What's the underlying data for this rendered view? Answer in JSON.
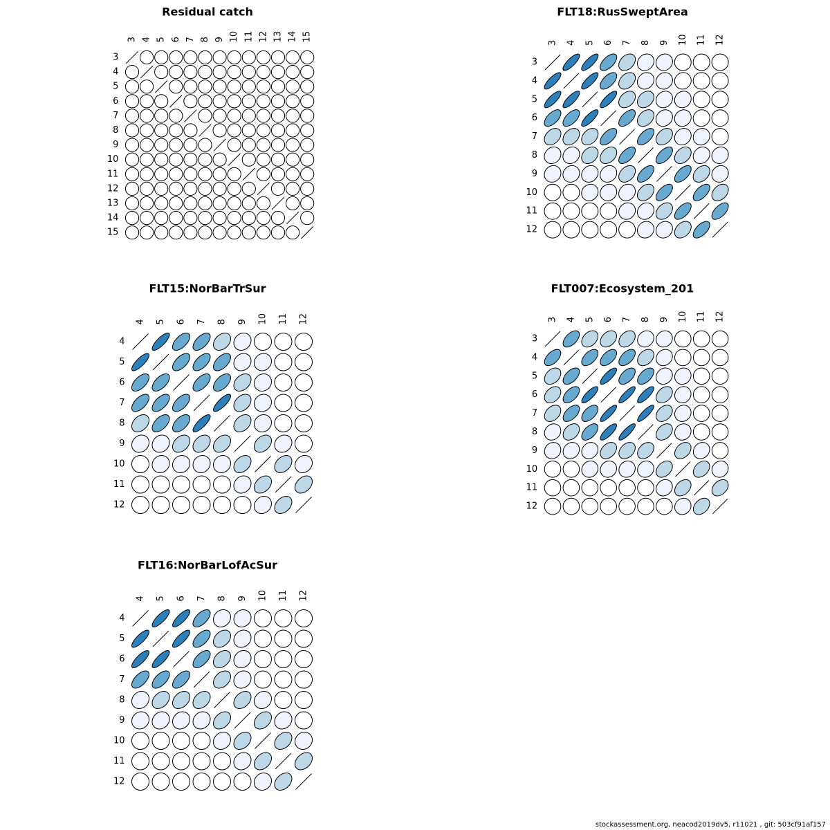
{
  "footer": "stockassessment.org, neacod2019dv5, r11021 , git: 503cf91af157",
  "palette": {
    "strong": "#2c7fb8",
    "medium": "#67a9cf",
    "light": "#bdd7e7",
    "faint": "#eff3ff",
    "none": "#ffffff"
  },
  "chart_data": [
    {
      "type": "correlation-ellipse",
      "title": "Residual catch",
      "labels": [
        "3",
        "4",
        "5",
        "6",
        "7",
        "8",
        "9",
        "10",
        "11",
        "12",
        "13",
        "14",
        "15"
      ],
      "matrix": [
        [
          1,
          0,
          0,
          0,
          0,
          0,
          0,
          0,
          0,
          0,
          0,
          0,
          0
        ],
        [
          0,
          1,
          0,
          0,
          0,
          0,
          0,
          0,
          0,
          0,
          0,
          0,
          0
        ],
        [
          0,
          0,
          1,
          0,
          0,
          0,
          0,
          0,
          0,
          0,
          0,
          0,
          0
        ],
        [
          0,
          0,
          0,
          1,
          0,
          0,
          0,
          0,
          0,
          0,
          0,
          0,
          0
        ],
        [
          0,
          0,
          0,
          0,
          1,
          0,
          0,
          0,
          0,
          0,
          0,
          0,
          0
        ],
        [
          0,
          0,
          0,
          0,
          0,
          1,
          0,
          0,
          0,
          0,
          0,
          0,
          0
        ],
        [
          0,
          0,
          0,
          0,
          0,
          0,
          1,
          0,
          0,
          0,
          0,
          0,
          0
        ],
        [
          0,
          0,
          0,
          0,
          0,
          0,
          0,
          1,
          0,
          0,
          0,
          0,
          0
        ],
        [
          0,
          0,
          0,
          0,
          0,
          0,
          0,
          0,
          1,
          0,
          0,
          0,
          0
        ],
        [
          0,
          0,
          0,
          0,
          0,
          0,
          0,
          0,
          0,
          1,
          0,
          0,
          0
        ],
        [
          0,
          0,
          0,
          0,
          0,
          0,
          0,
          0,
          0,
          0,
          1,
          0,
          0
        ],
        [
          0,
          0,
          0,
          0,
          0,
          0,
          0,
          0,
          0,
          0,
          0,
          1,
          0
        ],
        [
          0,
          0,
          0,
          0,
          0,
          0,
          0,
          0,
          0,
          0,
          0,
          0,
          1
        ]
      ]
    },
    {
      "type": "correlation-ellipse",
      "title": "FLT18:RusSweptArea",
      "labels": [
        "3",
        "4",
        "5",
        "6",
        "7",
        "8",
        "9",
        "10",
        "11",
        "12"
      ],
      "matrix": [
        [
          1,
          0.8,
          0.8,
          0.6,
          0.35,
          0.15,
          0.1,
          0,
          0,
          0
        ],
        [
          0.8,
          1,
          0.8,
          0.6,
          0.35,
          0.15,
          0.1,
          0.05,
          0,
          0
        ],
        [
          0.8,
          0.8,
          1,
          0.8,
          0.35,
          0.3,
          0.15,
          0.1,
          0,
          0
        ],
        [
          0.6,
          0.6,
          0.8,
          1,
          0.6,
          0.35,
          0.15,
          0.1,
          0.05,
          0
        ],
        [
          0.35,
          0.35,
          0.35,
          0.6,
          1,
          0.6,
          0.35,
          0.15,
          0.1,
          0
        ],
        [
          0.15,
          0.15,
          0.3,
          0.35,
          0.6,
          1,
          0.6,
          0.35,
          0.15,
          0.1
        ],
        [
          0.1,
          0.1,
          0.15,
          0.15,
          0.35,
          0.6,
          1,
          0.6,
          0.35,
          0.1
        ],
        [
          0,
          0,
          0.1,
          0.1,
          0.15,
          0.35,
          0.6,
          1,
          0.6,
          0.35
        ],
        [
          0,
          0,
          0,
          0,
          0.1,
          0.15,
          0.35,
          0.6,
          1,
          0.6
        ],
        [
          0,
          0,
          0,
          0,
          0,
          0.1,
          0.15,
          0.35,
          0.6,
          1
        ]
      ]
    },
    {
      "type": "correlation-ellipse",
      "title": "FLT15:NorBarTrSur",
      "labels": [
        "4",
        "5",
        "6",
        "7",
        "8",
        "9",
        "10",
        "11",
        "12"
      ],
      "matrix": [
        [
          1,
          0.8,
          0.6,
          0.6,
          0.35,
          0.15,
          0,
          0,
          0
        ],
        [
          0.8,
          1,
          0.6,
          0.6,
          0.55,
          0.15,
          0.1,
          0,
          0
        ],
        [
          0.6,
          0.6,
          1,
          0.6,
          0.55,
          0.35,
          0.1,
          0,
          0
        ],
        [
          0.6,
          0.6,
          0.6,
          1,
          0.8,
          0.35,
          0.1,
          0,
          0
        ],
        [
          0.35,
          0.55,
          0.55,
          0.8,
          1,
          0.35,
          0.1,
          0,
          0
        ],
        [
          0.15,
          0.15,
          0.35,
          0.35,
          0.35,
          1,
          0.35,
          0.15,
          0
        ],
        [
          0,
          0.1,
          0.1,
          0.1,
          0.1,
          0.35,
          1,
          0.35,
          0.15
        ],
        [
          0,
          0,
          0,
          0,
          0,
          0.15,
          0.35,
          1,
          0.35
        ],
        [
          0,
          0,
          0,
          0,
          0,
          0,
          0.15,
          0.35,
          1
        ]
      ]
    },
    {
      "type": "correlation-ellipse",
      "title": "FLT007:Ecosystem_201",
      "labels": [
        "3",
        "4",
        "5",
        "6",
        "7",
        "8",
        "9",
        "10",
        "11",
        "12"
      ],
      "matrix": [
        [
          1,
          0.55,
          0.35,
          0.35,
          0.35,
          0.15,
          0.1,
          0,
          0,
          0
        ],
        [
          0.55,
          1,
          0.55,
          0.55,
          0.55,
          0.35,
          0.15,
          0,
          0,
          0
        ],
        [
          0.35,
          0.55,
          1,
          0.8,
          0.55,
          0.55,
          0.15,
          0.1,
          0,
          0
        ],
        [
          0.35,
          0.55,
          0.8,
          1,
          0.85,
          0.8,
          0.35,
          0.1,
          0,
          0
        ],
        [
          0.35,
          0.55,
          0.55,
          0.85,
          1,
          0.85,
          0.35,
          0.1,
          0,
          0
        ],
        [
          0.15,
          0.35,
          0.55,
          0.8,
          0.85,
          1,
          0.35,
          0.1,
          0,
          0
        ],
        [
          0.1,
          0.15,
          0.15,
          0.35,
          0.35,
          0.35,
          1,
          0.35,
          0.15,
          0
        ],
        [
          0,
          0,
          0.1,
          0.1,
          0.1,
          0.1,
          0.35,
          1,
          0.35,
          0.1
        ],
        [
          0,
          0,
          0,
          0,
          0,
          0,
          0.15,
          0.35,
          1,
          0.35
        ],
        [
          0,
          0,
          0,
          0,
          0,
          0,
          0,
          0.1,
          0.35,
          1
        ]
      ]
    },
    {
      "type": "correlation-ellipse",
      "title": "FLT16:NorBarLofAcSur",
      "labels": [
        "4",
        "5",
        "6",
        "7",
        "8",
        "9",
        "10",
        "11",
        "12"
      ],
      "matrix": [
        [
          1,
          0.8,
          0.8,
          0.6,
          0.15,
          0.1,
          0,
          0,
          0
        ],
        [
          0.8,
          1,
          0.8,
          0.6,
          0.35,
          0.15,
          0,
          0,
          0
        ],
        [
          0.8,
          0.8,
          1,
          0.6,
          0.35,
          0.15,
          0,
          0,
          0
        ],
        [
          0.6,
          0.6,
          0.6,
          1,
          0.35,
          0.15,
          0,
          0,
          0
        ],
        [
          0.15,
          0.35,
          0.35,
          0.35,
          1,
          0.35,
          0.15,
          0,
          0
        ],
        [
          0.1,
          0.15,
          0.15,
          0.15,
          0.35,
          1,
          0.35,
          0.15,
          0
        ],
        [
          0,
          0,
          0,
          0,
          0.15,
          0.35,
          1,
          0.35,
          0.1
        ],
        [
          0,
          0,
          0,
          0,
          0,
          0.15,
          0.35,
          1,
          0.35
        ],
        [
          0,
          0,
          0,
          0,
          0,
          0,
          0.1,
          0.35,
          1
        ]
      ]
    }
  ]
}
